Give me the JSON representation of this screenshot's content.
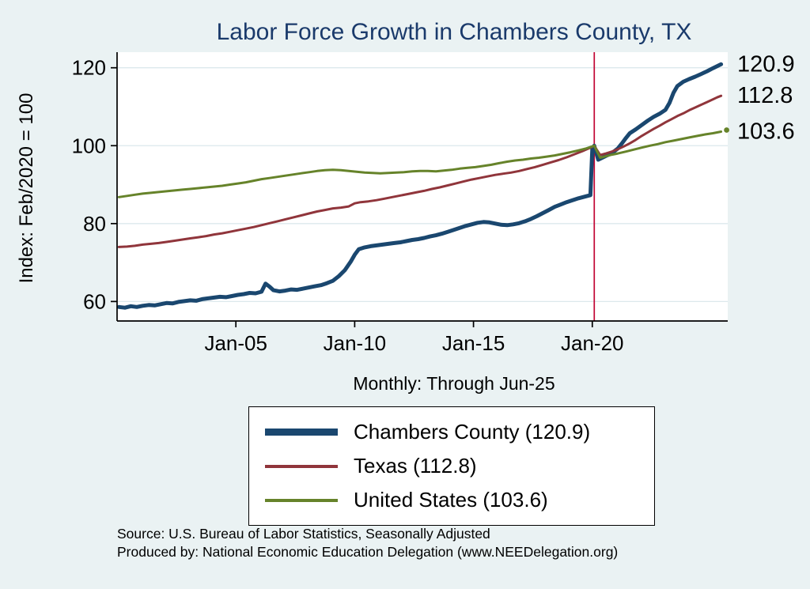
{
  "title": "Labor Force Growth in Chambers  County, TX",
  "subtitle": "Monthly: Through Jun-25",
  "ylabel": "Index: Feb/2020 = 100",
  "source_line1": "Source: U.S. Bureau of Labor Statistics, Seasonally Adjusted",
  "source_line2": "Produced by: National Economic Education Delegation (www.NEEDelegation.org)",
  "end_labels": [
    "120.9",
    "112.8",
    "103.6"
  ],
  "colors": {
    "background": "#eaf2f3",
    "title": "#1a3a6b",
    "grid": "#dce8ec",
    "axis": "#000000"
  },
  "chart_data": {
    "type": "line",
    "title": "Labor Force Growth in Chambers  County, TX",
    "subtitle": "Monthly: Through Jun-25",
    "xlabel": "",
    "ylabel": "Index: Feb/2020 = 100",
    "xlim": [
      2000.0,
      2025.7
    ],
    "ylim": [
      55,
      124
    ],
    "grid": "horizontal",
    "grid_color": "#dce8ec",
    "legend_position": "below",
    "y_ticks": [
      60,
      80,
      100,
      120
    ],
    "x_ticks": [
      {
        "x": 2005.0,
        "label": "Jan-05"
      },
      {
        "x": 2010.0,
        "label": "Jan-10"
      },
      {
        "x": 2015.0,
        "label": "Jan-15"
      },
      {
        "x": 2020.0,
        "label": "Jan-20"
      }
    ],
    "vline_x": 2020.083,
    "vline_color": "#c10534",
    "series": [
      {
        "name": "chambers-county",
        "label": "Chambers  County (120.9)",
        "last_value": 120.9,
        "color": "#1a476f",
        "width": 5,
        "end_marker": false,
        "points": [
          [
            2000.08,
            58.6
          ],
          [
            2000.33,
            58.4
          ],
          [
            2000.58,
            58.8
          ],
          [
            2000.83,
            58.6
          ],
          [
            2001.08,
            58.9
          ],
          [
            2001.33,
            59.1
          ],
          [
            2001.58,
            59.0
          ],
          [
            2001.83,
            59.3
          ],
          [
            2002.08,
            59.6
          ],
          [
            2002.33,
            59.5
          ],
          [
            2002.58,
            59.9
          ],
          [
            2002.83,
            60.1
          ],
          [
            2003.08,
            60.3
          ],
          [
            2003.33,
            60.2
          ],
          [
            2003.58,
            60.6
          ],
          [
            2003.83,
            60.8
          ],
          [
            2004.08,
            61.0
          ],
          [
            2004.33,
            61.2
          ],
          [
            2004.58,
            61.1
          ],
          [
            2004.83,
            61.4
          ],
          [
            2005.08,
            61.7
          ],
          [
            2005.33,
            61.9
          ],
          [
            2005.58,
            62.2
          ],
          [
            2005.83,
            62.1
          ],
          [
            2006.08,
            62.5
          ],
          [
            2006.25,
            64.6
          ],
          [
            2006.42,
            63.8
          ],
          [
            2006.58,
            62.9
          ],
          [
            2006.83,
            62.6
          ],
          [
            2007.08,
            62.8
          ],
          [
            2007.33,
            63.1
          ],
          [
            2007.58,
            63.0
          ],
          [
            2007.83,
            63.3
          ],
          [
            2008.08,
            63.6
          ],
          [
            2008.33,
            63.9
          ],
          [
            2008.58,
            64.2
          ],
          [
            2008.83,
            64.7
          ],
          [
            2009.08,
            65.3
          ],
          [
            2009.33,
            66.5
          ],
          [
            2009.58,
            68.0
          ],
          [
            2009.83,
            70.2
          ],
          [
            2010.0,
            72.0
          ],
          [
            2010.17,
            73.4
          ],
          [
            2010.42,
            73.9
          ],
          [
            2010.67,
            74.2
          ],
          [
            2010.92,
            74.4
          ],
          [
            2011.17,
            74.6
          ],
          [
            2011.42,
            74.8
          ],
          [
            2011.67,
            75.0
          ],
          [
            2011.92,
            75.2
          ],
          [
            2012.17,
            75.5
          ],
          [
            2012.42,
            75.8
          ],
          [
            2012.67,
            76.0
          ],
          [
            2012.92,
            76.3
          ],
          [
            2013.17,
            76.7
          ],
          [
            2013.42,
            77.0
          ],
          [
            2013.67,
            77.4
          ],
          [
            2013.92,
            77.9
          ],
          [
            2014.17,
            78.4
          ],
          [
            2014.42,
            78.9
          ],
          [
            2014.67,
            79.4
          ],
          [
            2014.92,
            79.8
          ],
          [
            2015.17,
            80.2
          ],
          [
            2015.42,
            80.4
          ],
          [
            2015.67,
            80.3
          ],
          [
            2015.92,
            80.0
          ],
          [
            2016.17,
            79.7
          ],
          [
            2016.42,
            79.6
          ],
          [
            2016.67,
            79.8
          ],
          [
            2016.92,
            80.1
          ],
          [
            2017.17,
            80.6
          ],
          [
            2017.42,
            81.2
          ],
          [
            2017.67,
            81.9
          ],
          [
            2017.92,
            82.7
          ],
          [
            2018.17,
            83.5
          ],
          [
            2018.42,
            84.3
          ],
          [
            2018.67,
            84.9
          ],
          [
            2018.92,
            85.5
          ],
          [
            2019.17,
            86.0
          ],
          [
            2019.42,
            86.5
          ],
          [
            2019.67,
            86.9
          ],
          [
            2019.92,
            87.3
          ],
          [
            2020.0,
            99.2
          ],
          [
            2020.08,
            100.0
          ],
          [
            2020.25,
            96.4
          ],
          [
            2020.42,
            96.9
          ],
          [
            2020.58,
            97.4
          ],
          [
            2020.83,
            98.1
          ],
          [
            2021.08,
            99.3
          ],
          [
            2021.25,
            100.6
          ],
          [
            2021.42,
            102.0
          ],
          [
            2021.58,
            103.2
          ],
          [
            2021.83,
            104.2
          ],
          [
            2022.08,
            105.3
          ],
          [
            2022.33,
            106.4
          ],
          [
            2022.58,
            107.4
          ],
          [
            2022.83,
            108.2
          ],
          [
            2023.08,
            109.2
          ],
          [
            2023.25,
            111.0
          ],
          [
            2023.42,
            113.6
          ],
          [
            2023.58,
            115.3
          ],
          [
            2023.83,
            116.4
          ],
          [
            2024.08,
            117.1
          ],
          [
            2024.33,
            117.7
          ],
          [
            2024.58,
            118.4
          ],
          [
            2024.83,
            119.1
          ],
          [
            2025.08,
            119.9
          ],
          [
            2025.25,
            120.4
          ],
          [
            2025.42,
            120.9
          ]
        ]
      },
      {
        "name": "texas",
        "label": "Texas (112.8)",
        "last_value": 112.8,
        "color": "#90353b",
        "width": 3,
        "end_marker": false,
        "points": [
          [
            2000.08,
            74.0
          ],
          [
            2000.42,
            74.1
          ],
          [
            2000.75,
            74.3
          ],
          [
            2001.08,
            74.6
          ],
          [
            2001.42,
            74.8
          ],
          [
            2001.75,
            75.0
          ],
          [
            2002.08,
            75.3
          ],
          [
            2002.42,
            75.6
          ],
          [
            2002.75,
            75.9
          ],
          [
            2003.08,
            76.2
          ],
          [
            2003.42,
            76.5
          ],
          [
            2003.75,
            76.8
          ],
          [
            2004.08,
            77.2
          ],
          [
            2004.42,
            77.5
          ],
          [
            2004.75,
            77.9
          ],
          [
            2005.08,
            78.3
          ],
          [
            2005.42,
            78.7
          ],
          [
            2005.75,
            79.1
          ],
          [
            2006.08,
            79.6
          ],
          [
            2006.42,
            80.1
          ],
          [
            2006.75,
            80.6
          ],
          [
            2007.08,
            81.1
          ],
          [
            2007.42,
            81.6
          ],
          [
            2007.75,
            82.1
          ],
          [
            2008.08,
            82.6
          ],
          [
            2008.42,
            83.1
          ],
          [
            2008.75,
            83.5
          ],
          [
            2009.08,
            83.9
          ],
          [
            2009.42,
            84.1
          ],
          [
            2009.75,
            84.4
          ],
          [
            2010.0,
            85.2
          ],
          [
            2010.25,
            85.5
          ],
          [
            2010.58,
            85.7
          ],
          [
            2010.92,
            86.0
          ],
          [
            2011.25,
            86.4
          ],
          [
            2011.58,
            86.8
          ],
          [
            2011.92,
            87.2
          ],
          [
            2012.25,
            87.6
          ],
          [
            2012.58,
            88.0
          ],
          [
            2012.92,
            88.4
          ],
          [
            2013.25,
            88.9
          ],
          [
            2013.58,
            89.3
          ],
          [
            2013.92,
            89.8
          ],
          [
            2014.25,
            90.3
          ],
          [
            2014.58,
            90.8
          ],
          [
            2014.92,
            91.3
          ],
          [
            2015.25,
            91.7
          ],
          [
            2015.58,
            92.1
          ],
          [
            2015.92,
            92.5
          ],
          [
            2016.25,
            92.8
          ],
          [
            2016.58,
            93.1
          ],
          [
            2016.92,
            93.5
          ],
          [
            2017.25,
            94.0
          ],
          [
            2017.58,
            94.5
          ],
          [
            2017.92,
            95.1
          ],
          [
            2018.25,
            95.7
          ],
          [
            2018.58,
            96.3
          ],
          [
            2018.92,
            97.0
          ],
          [
            2019.25,
            97.8
          ],
          [
            2019.58,
            98.6
          ],
          [
            2019.92,
            99.5
          ],
          [
            2020.08,
            100.0
          ],
          [
            2020.33,
            97.6
          ],
          [
            2020.58,
            98.0
          ],
          [
            2020.83,
            98.5
          ],
          [
            2021.08,
            99.1
          ],
          [
            2021.33,
            99.8
          ],
          [
            2021.58,
            100.6
          ],
          [
            2021.83,
            101.5
          ],
          [
            2022.08,
            102.5
          ],
          [
            2022.33,
            103.4
          ],
          [
            2022.58,
            104.3
          ],
          [
            2022.83,
            105.1
          ],
          [
            2023.08,
            106.0
          ],
          [
            2023.33,
            106.8
          ],
          [
            2023.58,
            107.6
          ],
          [
            2023.83,
            108.3
          ],
          [
            2024.08,
            109.1
          ],
          [
            2024.33,
            109.8
          ],
          [
            2024.58,
            110.5
          ],
          [
            2024.83,
            111.2
          ],
          [
            2025.08,
            111.9
          ],
          [
            2025.25,
            112.4
          ],
          [
            2025.42,
            112.8
          ]
        ]
      },
      {
        "name": "united-states",
        "label": "United States (103.6)",
        "last_value": 103.6,
        "color": "#66832a",
        "width": 3,
        "end_marker": true,
        "points": [
          [
            2000.08,
            86.8
          ],
          [
            2000.42,
            87.1
          ],
          [
            2000.75,
            87.4
          ],
          [
            2001.08,
            87.7
          ],
          [
            2001.42,
            87.9
          ],
          [
            2001.75,
            88.1
          ],
          [
            2002.08,
            88.3
          ],
          [
            2002.42,
            88.5
          ],
          [
            2002.75,
            88.7
          ],
          [
            2003.08,
            88.9
          ],
          [
            2003.42,
            89.1
          ],
          [
            2003.75,
            89.3
          ],
          [
            2004.08,
            89.5
          ],
          [
            2004.42,
            89.7
          ],
          [
            2004.75,
            90.0
          ],
          [
            2005.08,
            90.3
          ],
          [
            2005.42,
            90.6
          ],
          [
            2005.75,
            91.0
          ],
          [
            2006.08,
            91.4
          ],
          [
            2006.42,
            91.7
          ],
          [
            2006.75,
            92.0
          ],
          [
            2007.08,
            92.3
          ],
          [
            2007.42,
            92.6
          ],
          [
            2007.75,
            92.9
          ],
          [
            2008.08,
            93.2
          ],
          [
            2008.42,
            93.5
          ],
          [
            2008.75,
            93.7
          ],
          [
            2009.08,
            93.8
          ],
          [
            2009.42,
            93.7
          ],
          [
            2009.75,
            93.5
          ],
          [
            2010.08,
            93.3
          ],
          [
            2010.42,
            93.1
          ],
          [
            2010.75,
            93.0
          ],
          [
            2011.08,
            92.9
          ],
          [
            2011.42,
            93.0
          ],
          [
            2011.75,
            93.1
          ],
          [
            2012.08,
            93.2
          ],
          [
            2012.42,
            93.4
          ],
          [
            2012.75,
            93.5
          ],
          [
            2013.08,
            93.5
          ],
          [
            2013.42,
            93.4
          ],
          [
            2013.75,
            93.6
          ],
          [
            2014.08,
            93.8
          ],
          [
            2014.42,
            94.1
          ],
          [
            2014.75,
            94.3
          ],
          [
            2015.08,
            94.5
          ],
          [
            2015.42,
            94.8
          ],
          [
            2015.75,
            95.1
          ],
          [
            2016.08,
            95.5
          ],
          [
            2016.42,
            95.9
          ],
          [
            2016.75,
            96.2
          ],
          [
            2017.08,
            96.4
          ],
          [
            2017.42,
            96.7
          ],
          [
            2017.75,
            96.9
          ],
          [
            2018.08,
            97.2
          ],
          [
            2018.42,
            97.5
          ],
          [
            2018.75,
            97.9
          ],
          [
            2019.08,
            98.3
          ],
          [
            2019.42,
            98.8
          ],
          [
            2019.75,
            99.3
          ],
          [
            2020.08,
            100.0
          ],
          [
            2020.33,
            96.9
          ],
          [
            2020.58,
            97.3
          ],
          [
            2020.83,
            97.7
          ],
          [
            2021.08,
            98.0
          ],
          [
            2021.42,
            98.5
          ],
          [
            2021.75,
            99.0
          ],
          [
            2022.08,
            99.5
          ],
          [
            2022.42,
            100.0
          ],
          [
            2022.75,
            100.4
          ],
          [
            2023.08,
            100.9
          ],
          [
            2023.42,
            101.3
          ],
          [
            2023.75,
            101.7
          ],
          [
            2024.08,
            102.1
          ],
          [
            2024.42,
            102.5
          ],
          [
            2024.75,
            102.9
          ],
          [
            2025.08,
            103.2
          ],
          [
            2025.25,
            103.4
          ],
          [
            2025.42,
            103.6
          ]
        ]
      }
    ]
  }
}
